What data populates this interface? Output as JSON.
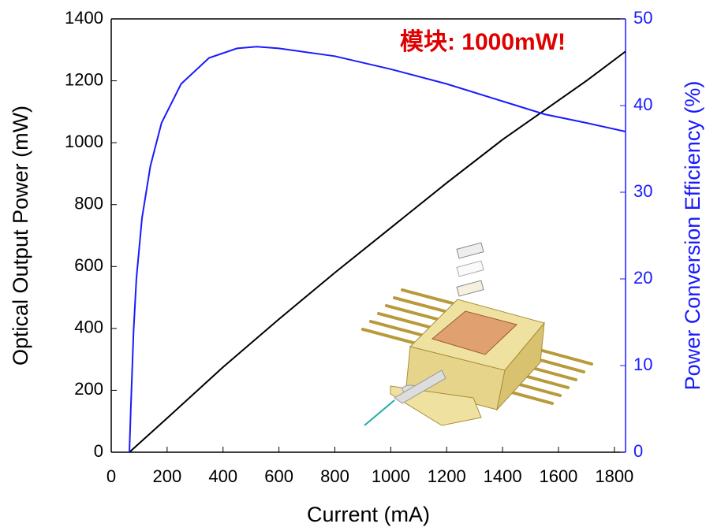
{
  "chart_data": {
    "type": "line",
    "annotation": "模块: 1000mW!",
    "annotation_color": "#e00000",
    "x_label": "Current (mA)",
    "y_label": "Optical Output Power (mW)",
    "y2_label": "Power Conversion Efficiency (%)",
    "xlim": [
      0,
      1840
    ],
    "xticks": [
      0,
      200,
      400,
      600,
      800,
      1000,
      1200,
      1400,
      1600,
      1800
    ],
    "ylim": [
      0,
      1400
    ],
    "yticks": [
      0,
      200,
      400,
      600,
      800,
      1000,
      1200,
      1400
    ],
    "y2lim": [
      0,
      50
    ],
    "y2ticks": [
      0,
      10,
      20,
      30,
      40,
      50
    ],
    "y2_color": "#1a1aff",
    "series": [
      {
        "name": "Optical Output Power",
        "color": "#000000",
        "x": [
          65,
          200,
          400,
          600,
          800,
          1000,
          1200,
          1400,
          1550,
          1700,
          1840
        ],
        "values": [
          0,
          110,
          275,
          430,
          580,
          725,
          870,
          1010,
          1105,
          1200,
          1295
        ]
      },
      {
        "name": "Power Conversion Efficiency",
        "color": "#1a1aff",
        "axis": "y2",
        "x": [
          65,
          70,
          80,
          90,
          110,
          140,
          180,
          250,
          350,
          450,
          520,
          600,
          800,
          1000,
          1200,
          1400,
          1550,
          1700,
          1840
        ],
        "values": [
          0,
          5,
          14,
          20,
          27,
          33,
          38,
          42.5,
          45.5,
          46.6,
          46.8,
          46.6,
          45.7,
          44.2,
          42.5,
          40.5,
          39,
          38,
          37
        ]
      }
    ]
  }
}
